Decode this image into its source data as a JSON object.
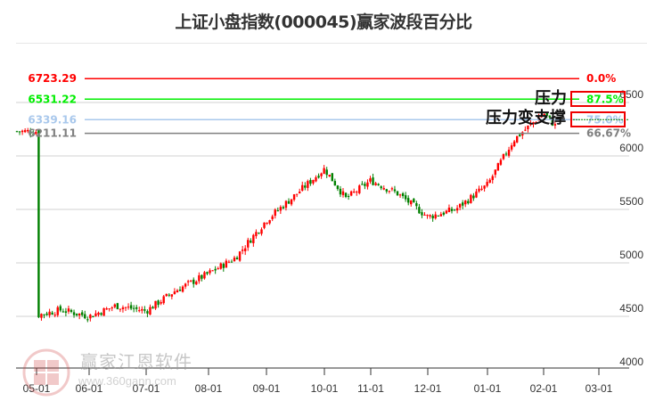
{
  "title": "上证小盘指数(000045)赢家波段百分比",
  "annotations": {
    "pressure": "压力",
    "pressure_to_support": "压力变支撑"
  },
  "watermark": {
    "brand": "赢家江恩软件",
    "url": "www.360gann.com",
    "logo_chars": [
      "江",
      "赢",
      "恩",
      "家"
    ]
  },
  "colors": {
    "up": "#ff0000",
    "down": "#008000",
    "level_0": "#ff0000",
    "level_875": "#00ee00",
    "level_75": "#a9c8ec",
    "level_6667": "#808080",
    "grid": "#e0e0e0",
    "axis": "#333333"
  },
  "chart_data": {
    "type": "candlestick",
    "title": "上证小盘指数(000045)赢家波段百分比",
    "xlabel": "",
    "ylabel": "",
    "ylim": [
      4000,
      6750
    ],
    "grid": true,
    "y_ticks": [
      4000,
      4500,
      5000,
      5500,
      6000,
      6500
    ],
    "x_ticks": [
      "05-01",
      "06-01",
      "07-01",
      "08-01",
      "09-01",
      "10-01",
      "11-01",
      "12-01",
      "01-01",
      "02-01",
      "03-01"
    ],
    "levels": [
      {
        "price": "6723.29",
        "value": 6723.29,
        "pct": "0.0%",
        "color": "#ff0000"
      },
      {
        "price": "6531.22",
        "value": 6531.22,
        "pct": "87.5%",
        "color": "#00ee00",
        "boxed": true
      },
      {
        "price": "6339.16",
        "value": 6339.16,
        "pct": "75.0%",
        "color": "#a9c8ec",
        "boxed": true
      },
      {
        "price": "6211.11",
        "value": 6211.11,
        "pct": "66.67%",
        "color": "#808080"
      }
    ],
    "approx_close_series": {
      "dates": [
        "05-01",
        "05-15",
        "06-01",
        "06-15",
        "07-01",
        "07-15",
        "08-01",
        "08-15",
        "09-01",
        "09-15",
        "10-01",
        "10-15",
        "11-01",
        "11-15",
        "12-01",
        "12-15",
        "01-01",
        "01-15",
        "02-01",
        "02-10"
      ],
      "values": [
        4510,
        4560,
        4500,
        4600,
        4550,
        4740,
        4900,
        5050,
        5400,
        5620,
        5880,
        5600,
        5770,
        5650,
        5430,
        5500,
        5730,
        6150,
        6400,
        6230
      ]
    }
  }
}
